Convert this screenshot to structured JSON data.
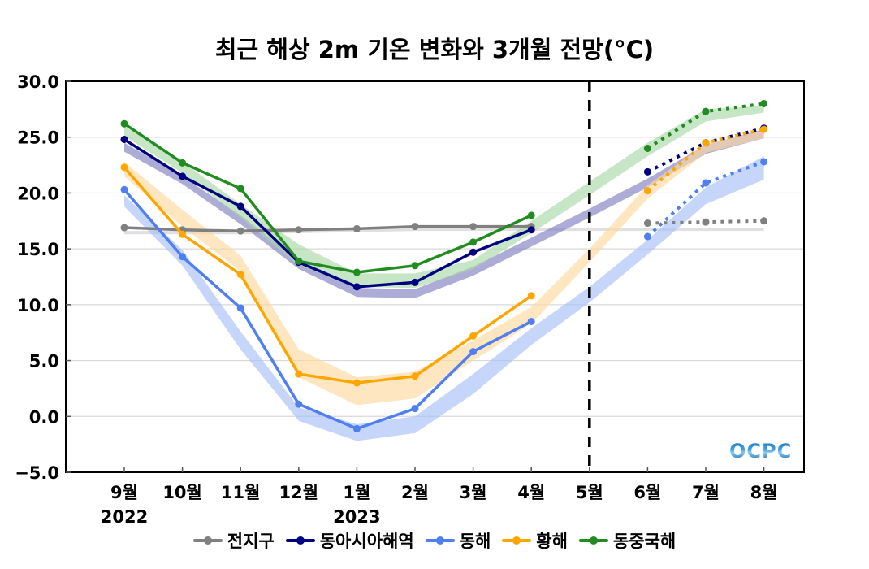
{
  "chart_data": {
    "type": "line",
    "title": "최근 해상 2m 기온 변화와 3개월 전망(°C)",
    "xlabel": "",
    "ylabel": "",
    "categories": [
      "9월",
      "10월",
      "11월",
      "12월",
      "1월",
      "2월",
      "3월",
      "4월",
      "5월",
      "6월",
      "7월",
      "8월"
    ],
    "year_labels": [
      {
        "at": "9월",
        "label": "2022"
      },
      {
        "at": "1월",
        "label": "2023"
      }
    ],
    "ylim": [
      -5.0,
      30.0
    ],
    "yticks": [
      "30.0",
      "25.0",
      "20.0",
      "15.0",
      "10.0",
      "5.0",
      "0.0",
      "−5.0"
    ],
    "ytick_values": [
      30,
      25,
      20,
      15,
      10,
      5,
      0,
      -5
    ],
    "grid": true,
    "divider": {
      "at": "5월",
      "style": "dashed",
      "meaning": "observed vs. forecast"
    },
    "legend_position": "bottom",
    "series": [
      {
        "name": "전지구",
        "color": "#808080",
        "band_color": "#cfcfcf",
        "observed": [
          16.9,
          16.7,
          16.6,
          16.7,
          16.8,
          17.0,
          17.0,
          17.0,
          null,
          null,
          null,
          null
        ],
        "forecast": [
          null,
          null,
          null,
          null,
          null,
          null,
          null,
          null,
          null,
          17.3,
          17.4,
          17.5
        ],
        "band_low": [
          16.3,
          16.3,
          16.3,
          16.4,
          16.5,
          16.6,
          16.6,
          16.6,
          16.6,
          16.6,
          16.6,
          16.6
        ],
        "band_high": [
          16.6,
          16.6,
          16.6,
          16.7,
          16.8,
          16.9,
          16.9,
          16.9,
          16.9,
          16.9,
          16.9,
          16.9
        ]
      },
      {
        "name": "동아시아해역",
        "color": "#000080",
        "band_color": "#8080c0",
        "observed": [
          24.8,
          21.5,
          18.8,
          13.8,
          11.6,
          12.0,
          14.7,
          16.7,
          null,
          null,
          null,
          null
        ],
        "forecast": [
          null,
          null,
          null,
          null,
          null,
          null,
          null,
          null,
          null,
          21.9,
          24.5,
          25.8
        ],
        "band_low": [
          23.7,
          20.8,
          17.2,
          13.2,
          10.7,
          10.6,
          12.6,
          15.2,
          17.8,
          20.5,
          23.5,
          24.9
        ],
        "band_high": [
          24.5,
          21.5,
          18.0,
          14.0,
          11.5,
          11.4,
          13.4,
          16.0,
          18.6,
          21.3,
          24.3,
          25.7
        ]
      },
      {
        "name": "동해",
        "color": "#4f7ff0",
        "band_color": "#a8c0f8",
        "observed": [
          20.3,
          14.3,
          9.7,
          1.1,
          -1.1,
          0.7,
          5.8,
          8.5,
          null,
          null,
          null,
          null
        ],
        "forecast": [
          null,
          null,
          null,
          null,
          null,
          null,
          null,
          null,
          null,
          16.1,
          20.9,
          22.8
        ],
        "band_low": [
          18.8,
          13.5,
          6.0,
          -0.4,
          -2.2,
          -1.5,
          2.0,
          6.4,
          10.2,
          14.5,
          19.0,
          21.2
        ],
        "band_high": [
          19.8,
          14.9,
          7.6,
          0.8,
          -0.7,
          0.0,
          3.8,
          7.9,
          11.6,
          15.8,
          20.5,
          23.3
        ]
      },
      {
        "name": "황해",
        "color": "#ffa500",
        "band_color": "#fdd9a0",
        "observed": [
          22.3,
          16.3,
          12.7,
          3.8,
          3.0,
          3.6,
          7.2,
          10.8,
          null,
          null,
          null,
          null
        ],
        "forecast": [
          null,
          null,
          null,
          null,
          null,
          null,
          null,
          null,
          null,
          20.2,
          24.5,
          25.7
        ],
        "band_low": [
          21.5,
          17.0,
          13.0,
          3.5,
          1.0,
          1.6,
          5.0,
          8.3,
          13.8,
          19.5,
          23.6,
          24.9
        ],
        "band_high": [
          22.8,
          18.5,
          14.4,
          6.0,
          3.5,
          4.0,
          6.8,
          9.8,
          15.0,
          20.7,
          24.4,
          25.6
        ]
      },
      {
        "name": "동중국해",
        "color": "#228b22",
        "band_color": "#a8d8a8",
        "observed": [
          26.2,
          22.7,
          20.4,
          13.9,
          12.9,
          13.5,
          15.6,
          18.0,
          null,
          null,
          null,
          null
        ],
        "forecast": [
          null,
          null,
          null,
          null,
          null,
          null,
          null,
          null,
          null,
          24.0,
          27.3,
          28.0
        ],
        "band_low": [
          25.1,
          21.8,
          17.8,
          13.5,
          11.6,
          11.5,
          13.2,
          16.4,
          19.8,
          23.3,
          26.4,
          27.2
        ],
        "band_high": [
          26.0,
          22.8,
          19.0,
          15.4,
          12.8,
          12.8,
          14.0,
          17.5,
          21.0,
          24.5,
          27.5,
          27.8
        ]
      }
    ]
  },
  "logo": {
    "text": "OCPC"
  }
}
